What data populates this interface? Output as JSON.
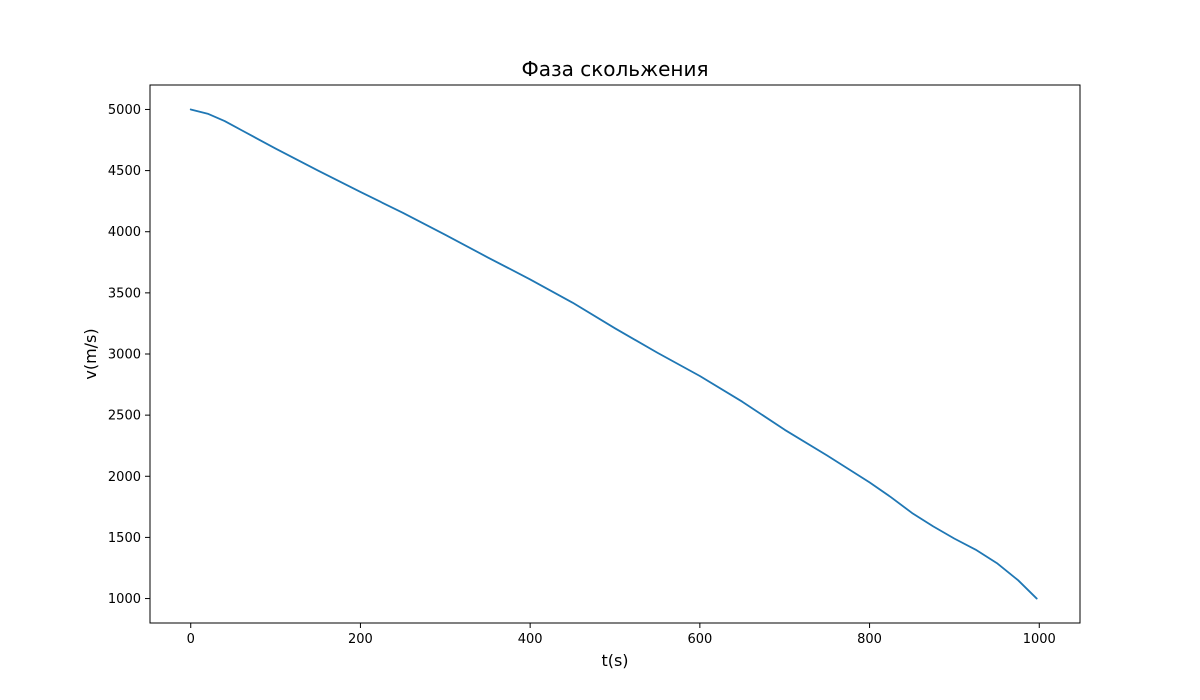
{
  "chart_data": {
    "type": "line",
    "title": "Фаза скольжения",
    "xlabel": "t(s)",
    "ylabel": "v(m/s)",
    "xlim": [
      -48,
      1048
    ],
    "ylim": [
      800,
      5200
    ],
    "x_ticks": [
      0,
      200,
      400,
      600,
      800,
      1000
    ],
    "y_ticks": [
      1000,
      1500,
      2000,
      2500,
      3000,
      3500,
      4000,
      4500,
      5000
    ],
    "grid": false,
    "legend": "none",
    "series": [
      {
        "color": "#1f77b4",
        "x": [
          0,
          20,
          40,
          60,
          80,
          100,
          150,
          200,
          250,
          300,
          350,
          400,
          450,
          500,
          550,
          600,
          650,
          700,
          750,
          800,
          825,
          850,
          875,
          900,
          925,
          950,
          975,
          997
        ],
        "y": [
          5000,
          4965,
          4905,
          4830,
          4755,
          4680,
          4500,
          4325,
          4155,
          3975,
          3790,
          3610,
          3420,
          3210,
          3010,
          2820,
          2610,
          2380,
          2170,
          1950,
          1830,
          1700,
          1590,
          1490,
          1400,
          1290,
          1150,
          1000
        ]
      }
    ]
  }
}
